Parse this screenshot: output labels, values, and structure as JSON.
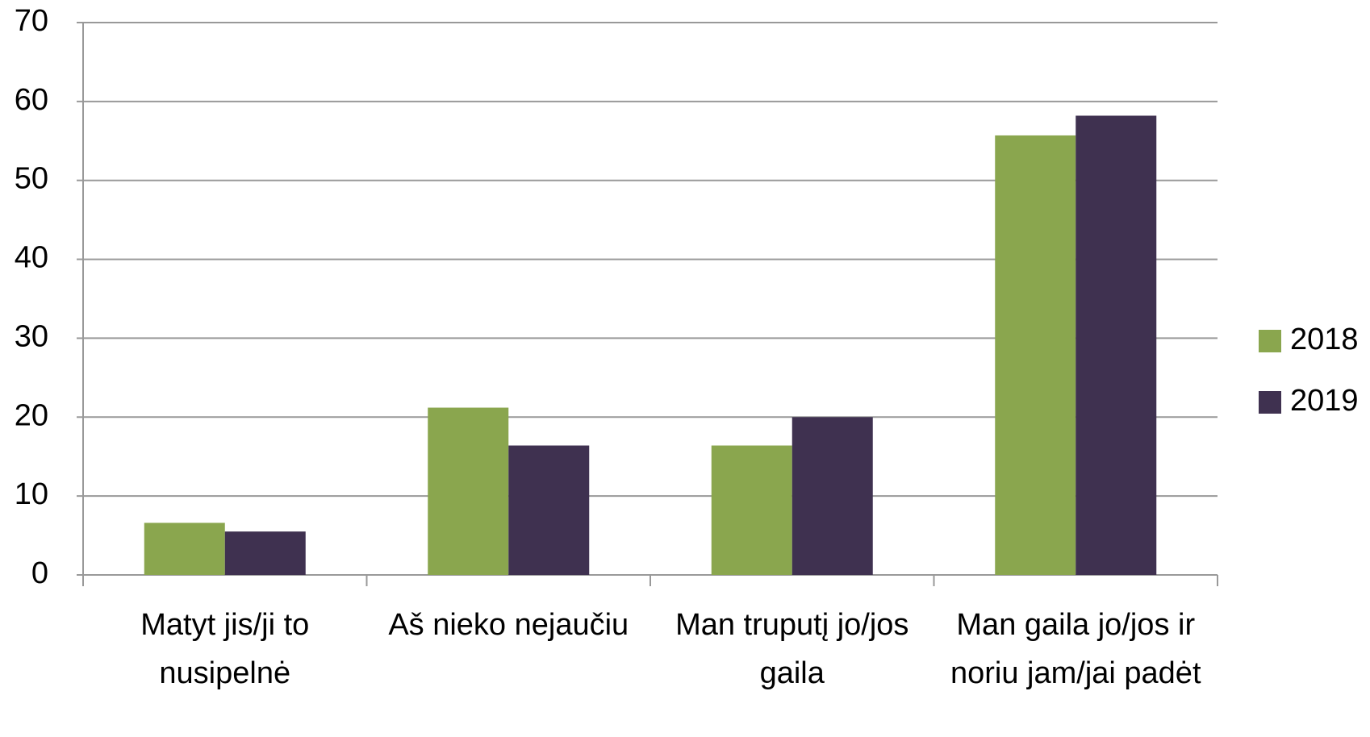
{
  "chart_data": {
    "type": "bar",
    "categories": [
      "Matyt jis/ji to nusipelnė",
      "Aš nieko nejaučiu",
      "Man truputį jo/jos gaila",
      "Man gaila jo/jos ir noriu jam/jai padėt"
    ],
    "series": [
      {
        "name": "2018",
        "color": "#8aa64e",
        "values": [
          6.6,
          21.2,
          16.4,
          55.7
        ]
      },
      {
        "name": "2019",
        "color": "#3f3150",
        "values": [
          5.5,
          16.4,
          20,
          58.2
        ]
      }
    ],
    "ylim": [
      0,
      70
    ],
    "yticks": [
      0,
      10,
      20,
      30,
      40,
      50,
      60,
      70
    ],
    "grid": true,
    "legend": "right"
  }
}
